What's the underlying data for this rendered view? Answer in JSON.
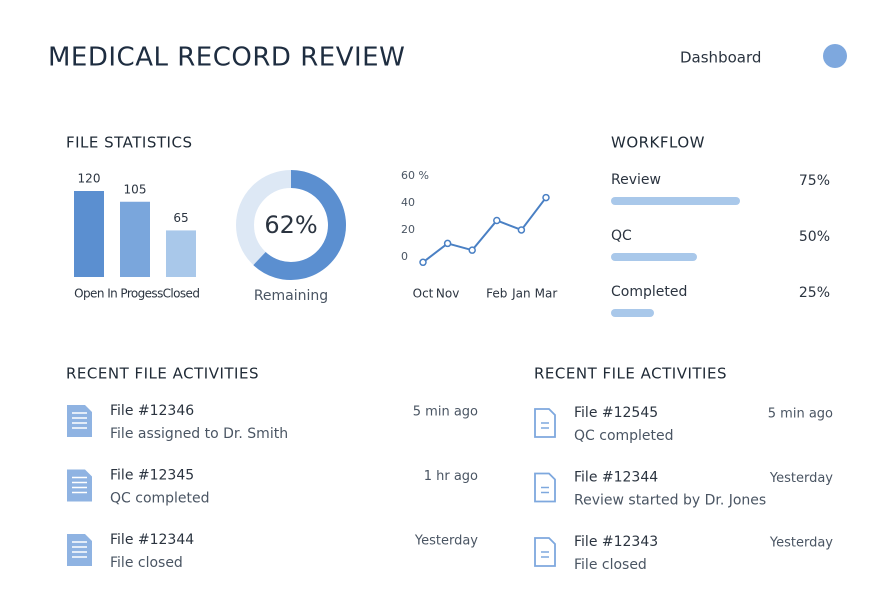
{
  "header": {
    "title": "MEDICAL RECORD REVIEW",
    "nav": "Dashboard"
  },
  "file_statistics": {
    "title": "FILE STATISTICS"
  },
  "chart_data": [
    {
      "type": "bar",
      "categories": [
        "Open",
        "In Progess",
        "Closed"
      ],
      "values": [
        120,
        105,
        65
      ],
      "colors": [
        "#5b8fd0",
        "#7aa6dc",
        "#a9c8ea"
      ]
    },
    {
      "type": "donut",
      "values": [
        62
      ],
      "value_labels": [
        "62%"
      ],
      "label": "Remaining",
      "color": "#5b8fd0"
    },
    {
      "type": "line",
      "categories": [
        "Oct",
        "Nov",
        null,
        "Feb",
        "Jan",
        "Mar"
      ],
      "values": [
        -4,
        10,
        5,
        27,
        20,
        44
      ],
      "color": "#4a80c4",
      "ylim": [
        -6,
        60
      ],
      "yticks": [
        0,
        20,
        40,
        {
          "value": 60,
          "label": "60 %"
        }
      ]
    }
  ],
  "workflow": {
    "title": "WORKFLOW",
    "items": [
      {
        "label": "Review",
        "value": 75,
        "value_label": "75%"
      },
      {
        "label": "QC",
        "value": 50,
        "value_label": "50%"
      },
      {
        "label": "Completed",
        "value": 25,
        "value_label": "25%"
      }
    ]
  },
  "activities": [
    {
      "title": "RECENT FILE ACTIVITIES",
      "items": [
        {
          "file": "File #12346",
          "text": "File assigned to Dr. Smith",
          "time": "5 min ago"
        },
        {
          "file": "File #12345",
          "text": "QC completed",
          "time": "1 hr ago"
        },
        {
          "file": "File #12344",
          "text": "File closed",
          "time": "Yesterday"
        }
      ]
    },
    {
      "title": "RECENT FILE ACTIVITIES",
      "items": [
        {
          "file": "File #12545",
          "text": "QC completed",
          "time": "5 min ago"
        },
        {
          "file": "File #12344",
          "text": "Review started by Dr. Jones",
          "time": "Yesterday"
        },
        {
          "file": "File #12343",
          "text": "File closed",
          "time": "Yesterday"
        }
      ]
    }
  ]
}
